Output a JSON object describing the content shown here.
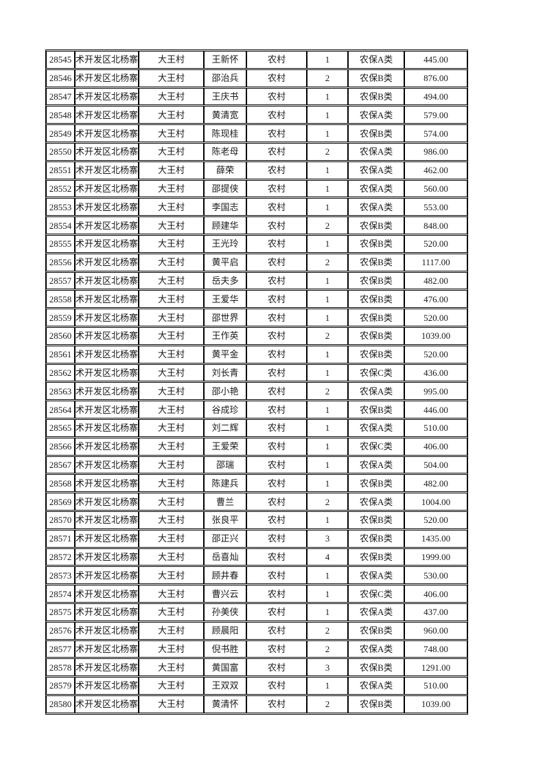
{
  "colors": {
    "page_background": "#ffffff",
    "grid_border": "#000000",
    "text": "#1a1a1a"
  },
  "table": {
    "column_names": [
      "serial-number",
      "district",
      "village",
      "person-name",
      "household-type",
      "person-count",
      "insurance-category",
      "amount"
    ],
    "rows": [
      [
        "28545",
        "术开发区北杨寨",
        "大王村",
        "王新怀",
        "农村",
        "1",
        "农保A类",
        "445.00"
      ],
      [
        "28546",
        "术开发区北杨寨",
        "大王村",
        "邵治兵",
        "农村",
        "2",
        "农保B类",
        "876.00"
      ],
      [
        "28547",
        "术开发区北杨寨",
        "大王村",
        "王庆书",
        "农村",
        "1",
        "农保B类",
        "494.00"
      ],
      [
        "28548",
        "术开发区北杨寨",
        "大王村",
        "黄清宽",
        "农村",
        "1",
        "农保A类",
        "579.00"
      ],
      [
        "28549",
        "术开发区北杨寨",
        "大王村",
        "陈现桂",
        "农村",
        "1",
        "农保B类",
        "574.00"
      ],
      [
        "28550",
        "术开发区北杨寨",
        "大王村",
        "陈老母",
        "农村",
        "2",
        "农保A类",
        "986.00"
      ],
      [
        "28551",
        "术开发区北杨寨",
        "大王村",
        "薛荣",
        "农村",
        "1",
        "农保A类",
        "462.00"
      ],
      [
        "28552",
        "术开发区北杨寨",
        "大王村",
        "邵提侠",
        "农村",
        "1",
        "农保A类",
        "560.00"
      ],
      [
        "28553",
        "术开发区北杨寨",
        "大王村",
        "李国志",
        "农村",
        "1",
        "农保A类",
        "553.00"
      ],
      [
        "28554",
        "术开发区北杨寨",
        "大王村",
        "顾建华",
        "农村",
        "2",
        "农保B类",
        "848.00"
      ],
      [
        "28555",
        "术开发区北杨寨",
        "大王村",
        "王光玲",
        "农村",
        "1",
        "农保B类",
        "520.00"
      ],
      [
        "28556",
        "术开发区北杨寨",
        "大王村",
        "黄平启",
        "农村",
        "2",
        "农保B类",
        "1117.00"
      ],
      [
        "28557",
        "术开发区北杨寨",
        "大王村",
        "岳夫多",
        "农村",
        "1",
        "农保B类",
        "482.00"
      ],
      [
        "28558",
        "术开发区北杨寨",
        "大王村",
        "王爱华",
        "农村",
        "1",
        "农保B类",
        "476.00"
      ],
      [
        "28559",
        "术开发区北杨寨",
        "大王村",
        "邵世界",
        "农村",
        "1",
        "农保B类",
        "520.00"
      ],
      [
        "28560",
        "术开发区北杨寨",
        "大王村",
        "王作英",
        "农村",
        "2",
        "农保B类",
        "1039.00"
      ],
      [
        "28561",
        "术开发区北杨寨",
        "大王村",
        "黄平金",
        "农村",
        "1",
        "农保B类",
        "520.00"
      ],
      [
        "28562",
        "术开发区北杨寨",
        "大王村",
        "刘长青",
        "农村",
        "1",
        "农保C类",
        "436.00"
      ],
      [
        "28563",
        "术开发区北杨寨",
        "大王村",
        "邵小艳",
        "农村",
        "2",
        "农保A类",
        "995.00"
      ],
      [
        "28564",
        "术开发区北杨寨",
        "大王村",
        "谷成珍",
        "农村",
        "1",
        "农保B类",
        "446.00"
      ],
      [
        "28565",
        "术开发区北杨寨",
        "大王村",
        "刘二辉",
        "农村",
        "1",
        "农保A类",
        "510.00"
      ],
      [
        "28566",
        "术开发区北杨寨",
        "大王村",
        "王爱荣",
        "农村",
        "1",
        "农保C类",
        "406.00"
      ],
      [
        "28567",
        "术开发区北杨寨",
        "大王村",
        "邵瑞",
        "农村",
        "1",
        "农保A类",
        "504.00"
      ],
      [
        "28568",
        "术开发区北杨寨",
        "大王村",
        "陈建兵",
        "农村",
        "1",
        "农保B类",
        "482.00"
      ],
      [
        "28569",
        "术开发区北杨寨",
        "大王村",
        "曹兰",
        "农村",
        "2",
        "农保A类",
        "1004.00"
      ],
      [
        "28570",
        "术开发区北杨寨",
        "大王村",
        "张良平",
        "农村",
        "1",
        "农保B类",
        "520.00"
      ],
      [
        "28571",
        "术开发区北杨寨",
        "大王村",
        "邵正兴",
        "农村",
        "3",
        "农保B类",
        "1435.00"
      ],
      [
        "28572",
        "术开发区北杨寨",
        "大王村",
        "岳喜灿",
        "农村",
        "4",
        "农保B类",
        "1999.00"
      ],
      [
        "28573",
        "术开发区北杨寨",
        "大王村",
        "顾井春",
        "农村",
        "1",
        "农保A类",
        "530.00"
      ],
      [
        "28574",
        "术开发区北杨寨",
        "大王村",
        "曹兴云",
        "农村",
        "1",
        "农保C类",
        "406.00"
      ],
      [
        "28575",
        "术开发区北杨寨",
        "大王村",
        "孙美侠",
        "农村",
        "1",
        "农保A类",
        "437.00"
      ],
      [
        "28576",
        "术开发区北杨寨",
        "大王村",
        "顾晨阳",
        "农村",
        "2",
        "农保B类",
        "960.00"
      ],
      [
        "28577",
        "术开发区北杨寨",
        "大王村",
        "倪书胜",
        "农村",
        "2",
        "农保A类",
        "748.00"
      ],
      [
        "28578",
        "术开发区北杨寨",
        "大王村",
        "黄国富",
        "农村",
        "3",
        "农保B类",
        "1291.00"
      ],
      [
        "28579",
        "术开发区北杨寨",
        "大王村",
        "王双双",
        "农村",
        "1",
        "农保A类",
        "510.00"
      ],
      [
        "28580",
        "术开发区北杨寨",
        "大王村",
        "黄清怀",
        "农村",
        "2",
        "农保B类",
        "1039.00"
      ]
    ]
  }
}
